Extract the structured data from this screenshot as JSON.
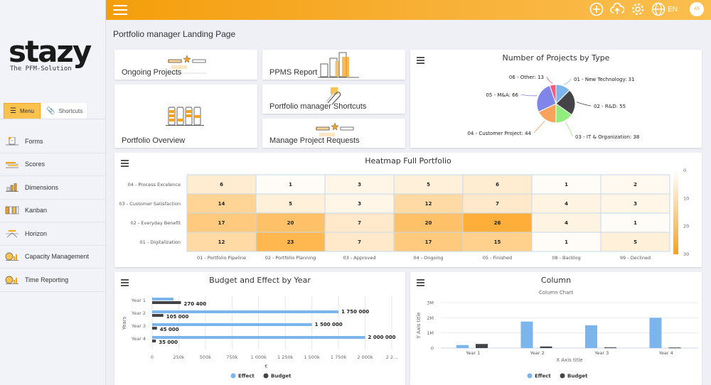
{
  "brand": {
    "name": "stazy",
    "tagline": "The PFM-Solution",
    "accent": "#f7a21b"
  },
  "sidebar": {
    "tabs": [
      {
        "label": "Menu",
        "icon": "hamburger-icon"
      },
      {
        "label": "Shortcuts",
        "icon": "paperclip-icon"
      }
    ],
    "items": [
      {
        "label": "Forms",
        "icon": "forms-icon"
      },
      {
        "label": "Scores",
        "icon": "scores-icon"
      },
      {
        "label": "Dimensions",
        "icon": "dimensions-icon"
      },
      {
        "label": "Kanban",
        "icon": "kanban-icon"
      },
      {
        "label": "Horizon",
        "icon": "horizon-icon"
      },
      {
        "label": "Capacity Management",
        "icon": "capacity-icon"
      },
      {
        "label": "Time Reporting",
        "icon": "time-reporting-icon"
      }
    ]
  },
  "topbar": {
    "language": "EN",
    "user_initials": "AS",
    "icons": [
      "add-icon",
      "upload-icon",
      "settings-icon",
      "globe-icon"
    ]
  },
  "page": {
    "title": "Portfolio manager Landing Page"
  },
  "tiles": [
    {
      "label": "Ongoing Projects"
    },
    {
      "label": "PPMS Report"
    },
    {
      "label": "Portfolio Overview"
    },
    {
      "label": "Portfolio manager Shortcuts"
    },
    {
      "label": "Manage Project Requests"
    }
  ],
  "chart_data": [
    {
      "type": "pie",
      "title": "Number of Projects by Type",
      "labels": [
        "01 - New Technology",
        "02 - R&D",
        "03 - IT & Organization",
        "04 - Customer Project",
        "05 - M&A",
        "06 - Other"
      ],
      "values": [
        31,
        55,
        38,
        44,
        66,
        13
      ],
      "colors": [
        "#7cb5ec",
        "#434348",
        "#90ed7d",
        "#f7a35c",
        "#8085e9",
        "#f15c80"
      ]
    },
    {
      "type": "heatmap",
      "title": "Heatmap Full Portfolio",
      "x": [
        "01 - Portfolio Pipeline",
        "02 - Portfolio Planning",
        "03 - Approved",
        "04 - Ongoing",
        "05 - Finished",
        "08 - Backlog",
        "99 - Declined"
      ],
      "y": [
        "04 - Process Excelence",
        "03 - Customer Satisfaction",
        "02 - Everyday Benefit",
        "01 - Digitalization"
      ],
      "values": [
        [
          6,
          1,
          3,
          5,
          6,
          1,
          2
        ],
        [
          14,
          5,
          3,
          12,
          7,
          4,
          3
        ],
        [
          17,
          20,
          7,
          20,
          26,
          4,
          1
        ],
        [
          12,
          23,
          7,
          17,
          15,
          1,
          5
        ]
      ],
      "colorAxis": {
        "min": 0,
        "max": 30,
        "ticks": [
          0,
          10,
          20,
          30
        ],
        "minColor": "#ffffff",
        "maxColor": "#f7a21b"
      }
    },
    {
      "type": "bar",
      "orientation": "horizontal",
      "title": "Budget and Effect by Year",
      "categories": [
        "Year 1",
        "Year 2",
        "Year 3",
        "Year 4"
      ],
      "series": [
        {
          "name": "Effect",
          "color": "#7cb5ec",
          "values": [
            200000,
            1750000,
            1500000,
            2000000
          ],
          "labels": [
            "",
            "1 750 000",
            "1 500 000",
            "2 000 000"
          ]
        },
        {
          "name": "Budget",
          "color": "#434348",
          "values": [
            270400,
            105000,
            45000,
            35000
          ],
          "labels": [
            "270 400",
            "105 000",
            "45 000",
            "35 000"
          ]
        }
      ],
      "xlabel": "€",
      "ylabel": "Years",
      "xticks": [
        "0",
        "250k",
        "500k",
        "750k",
        "1 000k",
        "1 250k",
        "1 500k",
        "1 750k",
        "2 000k",
        "2 2..."
      ],
      "xlim": [
        0,
        2250000
      ],
      "legend": "bottom"
    },
    {
      "type": "bar",
      "orientation": "vertical",
      "title": "Column",
      "subtitle": "Column Chart",
      "categories": [
        "Year 1",
        "Year 2",
        "Year 3",
        "Year 4"
      ],
      "series": [
        {
          "name": "Effect",
          "color": "#7cb5ec",
          "values": [
            200000,
            1750000,
            1500000,
            2000000
          ]
        },
        {
          "name": "Budget",
          "color": "#434348",
          "values": [
            270400,
            105000,
            45000,
            35000
          ]
        }
      ],
      "xlabel": "X Axis title",
      "ylabel": "Y Axis title",
      "yticks": [
        "0",
        "1M",
        "2M",
        "3M"
      ],
      "ylim": [
        0,
        3000000
      ],
      "legend": "bottom"
    }
  ]
}
